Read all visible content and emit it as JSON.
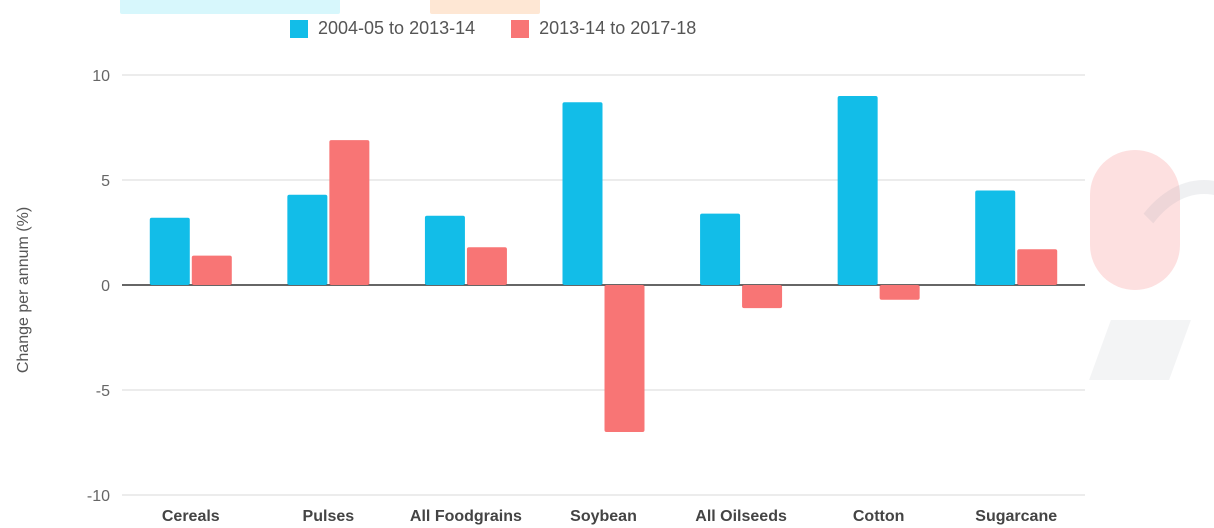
{
  "chart_data": {
    "type": "bar",
    "categories": [
      "Cereals",
      "Pulses",
      "All Foodgrains",
      "Soybean",
      "All Oilseeds",
      "Cotton",
      "Sugarcane"
    ],
    "series": [
      {
        "name": "2004-05 to 2013-14",
        "color": "#12bde8",
        "values": [
          3.2,
          4.3,
          3.3,
          8.7,
          3.4,
          9.0,
          4.5
        ]
      },
      {
        "name": "2013-14 to 2017-18",
        "color": "#f87575",
        "values": [
          1.4,
          6.9,
          1.8,
          -7.0,
          -1.1,
          -0.7,
          1.7
        ]
      }
    ],
    "ylabel": "Change per annum (%)",
    "ylim": [
      -10,
      10
    ],
    "yticks": [
      "10",
      "5",
      "0",
      "-5",
      "-10"
    ],
    "yticks_values": [
      10,
      5,
      0,
      -5,
      -10
    ],
    "grid": true,
    "legend": "top"
  }
}
